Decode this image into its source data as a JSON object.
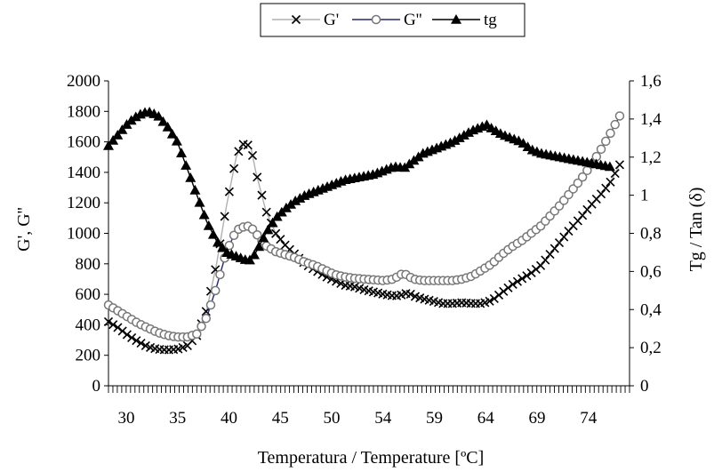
{
  "chart_data": {
    "type": "line",
    "xlabel": "Temperatura / Temperature [ºC]",
    "ylabel_left": "G', G''",
    "ylabel_right": "Tg / Tan (δ)",
    "x_tick_labels": [
      "30",
      "35",
      "40",
      "45",
      "50",
      "54",
      "59",
      "64",
      "69",
      "74"
    ],
    "ylim_left": [
      0,
      2000
    ],
    "ylim_right": [
      0,
      1.6
    ],
    "y_left_ticks": [
      "0",
      "200",
      "400",
      "600",
      "800",
      "1000",
      "1200",
      "1400",
      "1600",
      "1800",
      "2000"
    ],
    "y_right_ticks": [
      "0",
      "0,2",
      "0,4",
      "0,6",
      "0,8",
      "1",
      "1,2",
      "1,4",
      "1,6"
    ],
    "legend_position": "top-center",
    "grid": false,
    "series": [
      {
        "name": "G'",
        "axis": "left",
        "marker": "x",
        "line_color": "#b0b0b0",
        "marker_color": "#000000",
        "points": [
          [
            30,
            420
          ],
          [
            31,
            380
          ],
          [
            32,
            330
          ],
          [
            33,
            290
          ],
          [
            34,
            255
          ],
          [
            35,
            240
          ],
          [
            36,
            235
          ],
          [
            37,
            240
          ],
          [
            38,
            260
          ],
          [
            39,
            330
          ],
          [
            40,
            500
          ],
          [
            41,
            800
          ],
          [
            42,
            1180
          ],
          [
            43,
            1500
          ],
          [
            43.5,
            1580
          ],
          [
            44,
            1590
          ],
          [
            44.5,
            1560
          ],
          [
            45,
            1400
          ],
          [
            46,
            1150
          ],
          [
            47,
            1000
          ],
          [
            48,
            920
          ],
          [
            49,
            860
          ],
          [
            50,
            800
          ],
          [
            51,
            760
          ],
          [
            52,
            720
          ],
          [
            53,
            690
          ],
          [
            54,
            660
          ],
          [
            55,
            650
          ],
          [
            56,
            630
          ],
          [
            57,
            615
          ],
          [
            58,
            600
          ],
          [
            59,
            590
          ],
          [
            59.5,
            590
          ],
          [
            60,
            600
          ],
          [
            60.5,
            610
          ],
          [
            61,
            590
          ],
          [
            62,
            570
          ],
          [
            63,
            555
          ],
          [
            64,
            540
          ],
          [
            65,
            540
          ],
          [
            66,
            545
          ],
          [
            67,
            540
          ],
          [
            68,
            540
          ],
          [
            69,
            560
          ],
          [
            70,
            610
          ],
          [
            71,
            660
          ],
          [
            72,
            700
          ],
          [
            73,
            740
          ],
          [
            74,
            790
          ],
          [
            75,
            870
          ],
          [
            76,
            950
          ],
          [
            77,
            1030
          ],
          [
            78,
            1100
          ],
          [
            79,
            1180
          ],
          [
            80,
            1250
          ],
          [
            81,
            1330
          ],
          [
            82,
            1450
          ]
        ]
      },
      {
        "name": "G''",
        "axis": "left",
        "marker": "circle",
        "line_color": "#1f2a6b",
        "marker_color": "#777777",
        "points": [
          [
            30,
            530
          ],
          [
            31,
            490
          ],
          [
            32,
            450
          ],
          [
            33,
            410
          ],
          [
            34,
            380
          ],
          [
            35,
            350
          ],
          [
            36,
            330
          ],
          [
            37,
            320
          ],
          [
            38,
            320
          ],
          [
            39,
            340
          ],
          [
            40,
            450
          ],
          [
            41,
            650
          ],
          [
            42,
            880
          ],
          [
            43,
            1020
          ],
          [
            44,
            1050
          ],
          [
            44.5,
            1040
          ],
          [
            45,
            1000
          ],
          [
            46,
            920
          ],
          [
            47,
            880
          ],
          [
            48,
            860
          ],
          [
            49,
            840
          ],
          [
            50,
            810
          ],
          [
            51,
            790
          ],
          [
            52,
            760
          ],
          [
            53,
            730
          ],
          [
            54,
            715
          ],
          [
            55,
            705
          ],
          [
            56,
            700
          ],
          [
            57,
            695
          ],
          [
            58,
            690
          ],
          [
            59,
            700
          ],
          [
            59.5,
            720
          ],
          [
            60,
            740
          ],
          [
            60.5,
            720
          ],
          [
            61,
            700
          ],
          [
            62,
            690
          ],
          [
            63,
            690
          ],
          [
            64,
            690
          ],
          [
            65,
            690
          ],
          [
            66,
            700
          ],
          [
            67,
            720
          ],
          [
            68,
            760
          ],
          [
            69,
            800
          ],
          [
            70,
            860
          ],
          [
            71,
            910
          ],
          [
            72,
            950
          ],
          [
            73,
            1000
          ],
          [
            74,
            1050
          ],
          [
            75,
            1120
          ],
          [
            76,
            1190
          ],
          [
            77,
            1270
          ],
          [
            78,
            1350
          ],
          [
            79,
            1440
          ],
          [
            80,
            1540
          ],
          [
            81,
            1650
          ],
          [
            82,
            1770
          ]
        ]
      },
      {
        "name": "tg",
        "axis": "right",
        "marker": "triangle",
        "line_color": "#000000",
        "marker_color": "#000000",
        "points": [
          [
            30,
            1.26
          ],
          [
            31,
            1.32
          ],
          [
            32,
            1.38
          ],
          [
            33,
            1.42
          ],
          [
            34,
            1.44
          ],
          [
            35,
            1.42
          ],
          [
            36,
            1.36
          ],
          [
            37,
            1.28
          ],
          [
            38,
            1.14
          ],
          [
            39,
            1.0
          ],
          [
            40,
            0.86
          ],
          [
            41,
            0.76
          ],
          [
            42,
            0.7
          ],
          [
            43,
            0.68
          ],
          [
            44,
            0.66
          ],
          [
            44.5,
            0.66
          ],
          [
            45,
            0.7
          ],
          [
            46,
            0.8
          ],
          [
            47,
            0.88
          ],
          [
            48,
            0.93
          ],
          [
            49,
            0.97
          ],
          [
            50,
            1.0
          ],
          [
            51,
            1.02
          ],
          [
            52,
            1.04
          ],
          [
            53,
            1.06
          ],
          [
            54,
            1.08
          ],
          [
            55,
            1.09
          ],
          [
            56,
            1.1
          ],
          [
            57,
            1.11
          ],
          [
            58,
            1.13
          ],
          [
            59,
            1.15
          ],
          [
            59.5,
            1.15
          ],
          [
            60,
            1.14
          ],
          [
            61,
            1.18
          ],
          [
            62,
            1.22
          ],
          [
            63,
            1.24
          ],
          [
            64,
            1.26
          ],
          [
            65,
            1.28
          ],
          [
            66,
            1.31
          ],
          [
            67,
            1.34
          ],
          [
            68,
            1.36
          ],
          [
            68.5,
            1.37
          ],
          [
            69,
            1.35
          ],
          [
            70,
            1.32
          ],
          [
            71,
            1.3
          ],
          [
            72,
            1.28
          ],
          [
            73,
            1.24
          ],
          [
            74,
            1.22
          ],
          [
            75,
            1.21
          ],
          [
            76,
            1.2
          ],
          [
            77,
            1.19
          ],
          [
            78,
            1.18
          ],
          [
            79,
            1.17
          ],
          [
            80,
            1.16
          ],
          [
            81,
            1.15
          ]
        ]
      }
    ]
  }
}
